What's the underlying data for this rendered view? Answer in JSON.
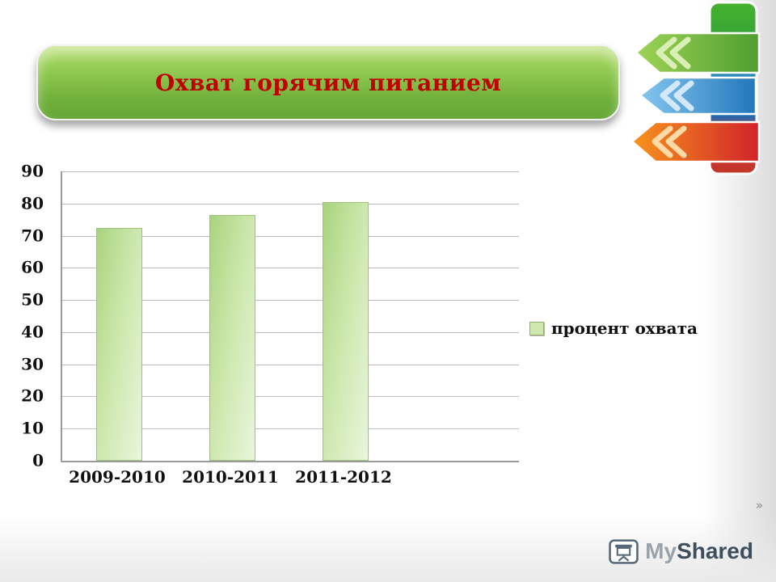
{
  "slide": {
    "title": "Охват горячим питанием"
  },
  "chart_data": {
    "type": "bar",
    "title": "",
    "categories": [
      "2009-2010",
      "2010-2011",
      "2011-2012"
    ],
    "values": [
      72,
      76,
      80
    ],
    "series": [
      {
        "name": "процент охвата",
        "values": [
          72,
          76,
          80
        ]
      }
    ],
    "legend": [
      "процент охвата"
    ],
    "legend_position": "right",
    "xlabel": "",
    "ylabel": "",
    "ylim": [
      0,
      90
    ],
    "ytick_step": 10,
    "grid": true,
    "bar_color": "#cbe7ab"
  },
  "decorations": {
    "title_color": "#c00000",
    "banner_color": "#7ab648",
    "ribbon_green": "#5ba633",
    "ribbon_blue": "#2e86c8",
    "ribbon_orange": "#f26522",
    "ribbon_red": "#d22b2b"
  },
  "footer": {
    "logo_prefix": "My",
    "logo_suffix": "Shared",
    "next_arrow": "»"
  }
}
